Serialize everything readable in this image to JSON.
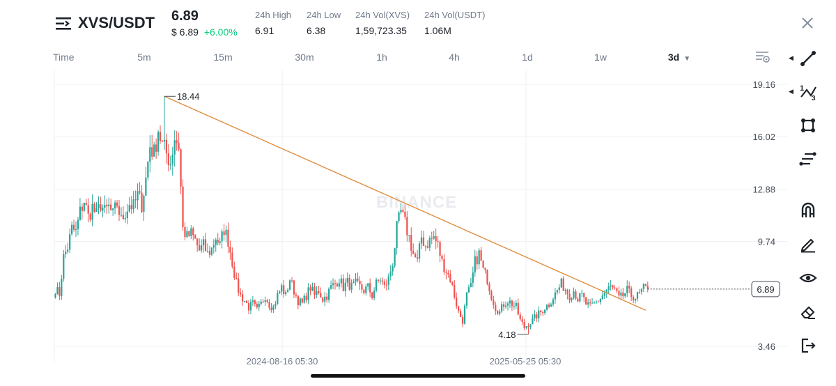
{
  "header": {
    "pair": "XVS/USDT",
    "price": "6.89",
    "price_usd": "$ 6.89",
    "change": "+6.00%",
    "stats": [
      {
        "label": "24h High",
        "value": "6.91"
      },
      {
        "label": "24h Low",
        "value": "6.38"
      },
      {
        "label": "24h Vol(XVS)",
        "value": "1,59,723.35"
      },
      {
        "label": "24h Vol(USDT)",
        "value": "1.06M"
      }
    ]
  },
  "timeframes": [
    {
      "label": "Time"
    },
    {
      "label": "5m"
    },
    {
      "label": "15m"
    },
    {
      "label": "30m"
    },
    {
      "label": "1h"
    },
    {
      "label": "4h"
    },
    {
      "label": "1d"
    },
    {
      "label": "1w"
    },
    {
      "label": "3d",
      "active": true
    }
  ],
  "toolbar": {
    "items": [
      "trend-line-icon",
      "fib-tool-icon",
      "rectangle-tool-icon",
      "parallel-lines-icon",
      "magnet-icon",
      "pencil-icon",
      "eye-icon",
      "eraser-icon",
      "exit-icon"
    ]
  },
  "chart_data": {
    "type": "candlestick",
    "watermark": "BINANCE",
    "y_ticks": [
      19.16,
      16.02,
      12.88,
      9.74,
      3.46
    ],
    "y_tick_labels": [
      "19.16",
      "16.02",
      "12.88",
      "9.74",
      "3.46"
    ],
    "ylim": [
      3.0,
      19.6
    ],
    "x_tick_labels": [
      "2024-08-16 05:30",
      "2025-05-25 05:30"
    ],
    "last_price": 6.89,
    "last_price_label": "6.89",
    "high_marker": {
      "value": 18.44,
      "label": "18.44"
    },
    "low_marker": {
      "value": 4.18,
      "label": "4.18"
    },
    "trend_line": {
      "start": {
        "index": 53,
        "price": 18.44
      },
      "end": {
        "index": 287,
        "price": 5.62
      }
    },
    "colors": {
      "up": "#26a69a",
      "down": "#ef5350",
      "trend": "#e08c3c",
      "grid": "#eef0f2"
    },
    "close_path": [
      [
        0,
        6.9
      ],
      [
        2,
        6.6
      ],
      [
        4,
        8.8
      ],
      [
        6,
        9.4
      ],
      [
        8,
        10.5
      ],
      [
        10,
        10.3
      ],
      [
        12,
        11.5
      ],
      [
        14,
        12.2
      ],
      [
        16,
        11.2
      ],
      [
        18,
        11.8
      ],
      [
        20,
        11.3
      ],
      [
        22,
        12.0
      ],
      [
        24,
        11.5
      ],
      [
        26,
        11.8
      ],
      [
        28,
        11.3
      ],
      [
        30,
        12.0
      ],
      [
        32,
        11.0
      ],
      [
        34,
        11.5
      ],
      [
        36,
        12.0
      ],
      [
        38,
        11.8
      ],
      [
        40,
        12.5
      ],
      [
        42,
        12.0
      ],
      [
        44,
        13.5
      ],
      [
        46,
        15.5
      ],
      [
        48,
        15.0
      ],
      [
        50,
        16.5
      ],
      [
        52,
        15.5
      ],
      [
        54,
        15.0
      ],
      [
        56,
        14.5
      ],
      [
        58,
        16.0
      ],
      [
        60,
        15.5
      ],
      [
        62,
        10.5
      ],
      [
        64,
        10.0
      ],
      [
        66,
        10.2
      ],
      [
        68,
        9.8
      ],
      [
        70,
        9.2
      ],
      [
        72,
        9.5
      ],
      [
        74,
        9.0
      ],
      [
        76,
        9.3
      ],
      [
        78,
        10.0
      ],
      [
        80,
        9.5
      ],
      [
        82,
        10.5
      ],
      [
        84,
        9.8
      ],
      [
        86,
        8.5
      ],
      [
        88,
        7.2
      ],
      [
        90,
        6.5
      ],
      [
        92,
        6.2
      ],
      [
        94,
        5.8
      ],
      [
        96,
        6.0
      ],
      [
        98,
        5.6
      ],
      [
        100,
        6.0
      ],
      [
        102,
        6.5
      ],
      [
        104,
        6.0
      ],
      [
        106,
        5.8
      ],
      [
        108,
        6.5
      ],
      [
        110,
        7.0
      ],
      [
        112,
        6.5
      ],
      [
        114,
        7.5
      ],
      [
        116,
        6.8
      ],
      [
        118,
        6.2
      ],
      [
        120,
        6.0
      ],
      [
        122,
        6.5
      ],
      [
        124,
        7.0
      ],
      [
        126,
        6.5
      ],
      [
        128,
        6.8
      ],
      [
        130,
        6.3
      ],
      [
        132,
        6.5
      ],
      [
        134,
        7.0
      ],
      [
        136,
        7.2
      ],
      [
        138,
        7.5
      ],
      [
        140,
        7.0
      ],
      [
        142,
        7.3
      ],
      [
        144,
        7.0
      ],
      [
        146,
        7.2
      ],
      [
        148,
        7.0
      ],
      [
        150,
        6.8
      ],
      [
        152,
        7.0
      ],
      [
        154,
        6.5
      ],
      [
        156,
        7.2
      ],
      [
        158,
        7.5
      ],
      [
        160,
        7.0
      ],
      [
        162,
        7.5
      ],
      [
        164,
        8.5
      ],
      [
        166,
        10.5
      ],
      [
        168,
        11.5
      ],
      [
        170,
        10.8
      ],
      [
        172,
        10.0
      ],
      [
        174,
        9.0
      ],
      [
        176,
        8.5
      ],
      [
        178,
        10.0
      ],
      [
        180,
        9.5
      ],
      [
        182,
        9.8
      ],
      [
        184,
        10.0
      ],
      [
        186,
        9.5
      ],
      [
        188,
        8.5
      ],
      [
        190,
        8.0
      ],
      [
        192,
        7.5
      ],
      [
        194,
        6.5
      ],
      [
        196,
        5.5
      ],
      [
        198,
        5.0
      ],
      [
        200,
        6.5
      ],
      [
        202,
        7.0
      ],
      [
        204,
        8.5
      ],
      [
        206,
        9.0
      ],
      [
        208,
        8.0
      ],
      [
        210,
        7.5
      ],
      [
        212,
        6.5
      ],
      [
        214,
        5.8
      ],
      [
        216,
        5.5
      ],
      [
        218,
        6.0
      ],
      [
        220,
        6.2
      ],
      [
        222,
        6.0
      ],
      [
        224,
        5.8
      ],
      [
        226,
        5.0
      ],
      [
        228,
        4.6
      ],
      [
        230,
        4.8
      ],
      [
        232,
        5.0
      ],
      [
        234,
        5.3
      ],
      [
        236,
        5.5
      ],
      [
        238,
        5.8
      ],
      [
        240,
        6.0
      ],
      [
        242,
        6.4
      ],
      [
        244,
        6.8
      ],
      [
        246,
        7.2
      ],
      [
        248,
        6.9
      ],
      [
        250,
        6.5
      ],
      [
        252,
        6.8
      ],
      [
        254,
        6.3
      ],
      [
        256,
        6.5
      ],
      [
        258,
        6.0
      ],
      [
        260,
        5.8
      ],
      [
        262,
        6.0
      ],
      [
        264,
        6.2
      ],
      [
        266,
        6.5
      ],
      [
        268,
        6.8
      ],
      [
        270,
        7.0
      ],
      [
        272,
        6.8
      ],
      [
        274,
        6.3
      ],
      [
        276,
        6.5
      ],
      [
        278,
        6.8
      ],
      [
        280,
        6.5
      ],
      [
        282,
        6.4
      ],
      [
        284,
        6.6
      ],
      [
        286,
        6.9
      ],
      [
        288,
        6.89
      ]
    ]
  }
}
